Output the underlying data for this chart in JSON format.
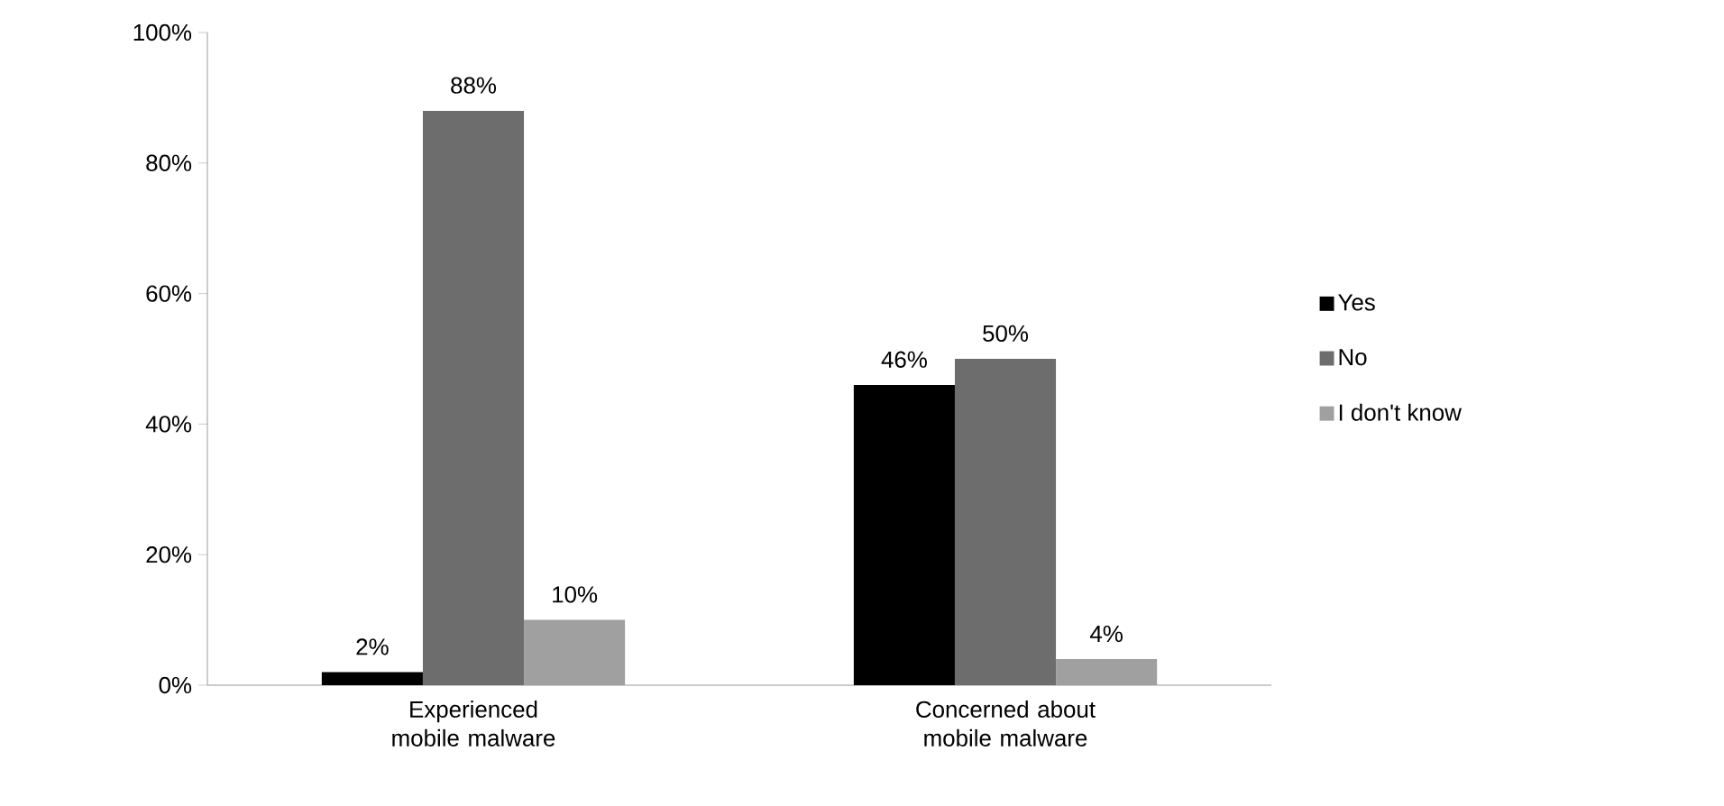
{
  "chart_data": {
    "type": "bar",
    "categories": [
      "Experienced mobile malware",
      "Concerned about mobile malware"
    ],
    "series": [
      {
        "name": "Yes",
        "color": "#000000",
        "values": [
          2,
          46
        ],
        "value_labels": [
          "2%",
          "46%"
        ]
      },
      {
        "name": "No",
        "color": "#6d6d6d",
        "values": [
          88,
          50
        ],
        "value_labels": [
          "88%",
          "50%"
        ]
      },
      {
        "name": "I don't know",
        "color": "#a0a0a0",
        "values": [
          10,
          4
        ],
        "value_labels": [
          "10%",
          "4%"
        ]
      }
    ],
    "ylim": [
      0,
      100
    ],
    "yticks": [
      {
        "value": 0,
        "label": "0%"
      },
      {
        "value": 20,
        "label": "20%"
      },
      {
        "value": 40,
        "label": "40%"
      },
      {
        "value": 60,
        "label": "60%"
      },
      {
        "value": 80,
        "label": "80%"
      },
      {
        "value": 100,
        "label": "100%"
      }
    ],
    "grid": false,
    "legend": "right"
  }
}
